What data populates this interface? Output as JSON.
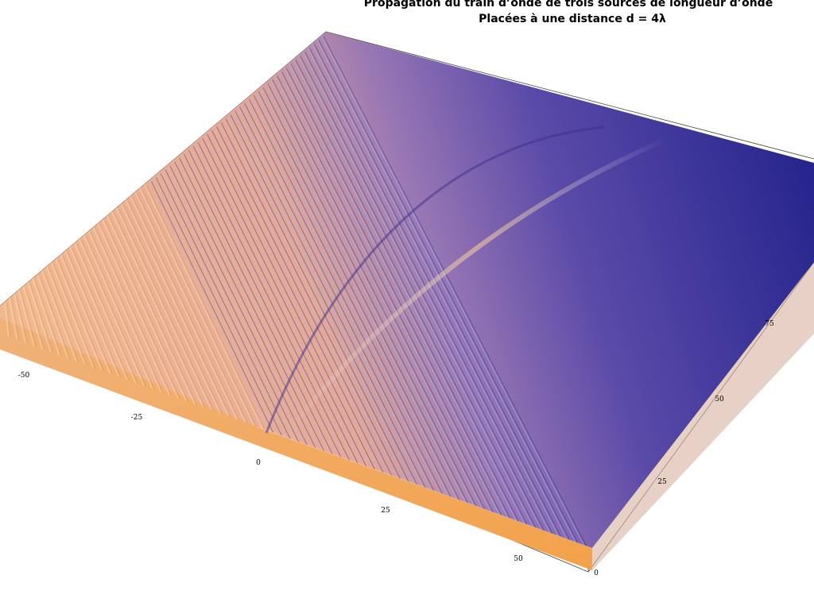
{
  "title": {
    "line1": "Propagation du train d’onde de trois sources de longueur d’onde",
    "line2": "Placées à une distance d = 4λ"
  },
  "axes": {
    "x": {
      "ticks": [
        -50,
        -25,
        0,
        25,
        50
      ]
    },
    "y": {
      "ticks": [
        0,
        25,
        50,
        75
      ]
    }
  }
}
